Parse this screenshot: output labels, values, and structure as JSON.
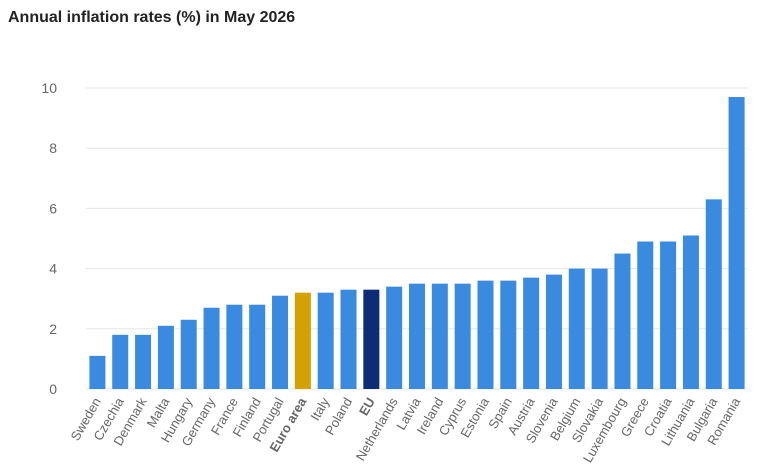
{
  "chart_data": {
    "type": "bar",
    "title": "Annual inflation rates (%) in May 2026",
    "xlabel": "",
    "ylabel": "",
    "ylim": [
      0,
      10
    ],
    "yticks": [
      0,
      2,
      4,
      6,
      8,
      10
    ],
    "grid": true,
    "legend": "none",
    "categories": [
      "Sweden",
      "Czechia",
      "Denmark",
      "Malta",
      "Hungary",
      "Germany",
      "France",
      "Finland",
      "Portugal",
      "Euro area",
      "Italy",
      "Poland",
      "EU",
      "Netherlands",
      "Latvia",
      "Ireland",
      "Cyprus",
      "Estonia",
      "Spain",
      "Austria",
      "Slovenia",
      "Belgium",
      "Slovakia",
      "Luxembourg",
      "Greece",
      "Croatia",
      "Lithuania",
      "Bulgaria",
      "Romania"
    ],
    "values": [
      1.1,
      1.8,
      1.8,
      2.1,
      2.3,
      2.7,
      2.8,
      2.8,
      3.1,
      3.2,
      3.2,
      3.3,
      3.3,
      3.4,
      3.5,
      3.5,
      3.5,
      3.6,
      3.6,
      3.7,
      3.8,
      4.0,
      4.0,
      4.5,
      4.9,
      4.9,
      5.1,
      6.3,
      9.7
    ],
    "bold_categories": [
      "Euro area",
      "EU"
    ],
    "colors": {
      "default": "#3a8ae0",
      "Euro area": "#d3a100",
      "EU": "#0c2c75",
      "grid": "#e6e6e6",
      "axis_text": "#666666"
    }
  }
}
